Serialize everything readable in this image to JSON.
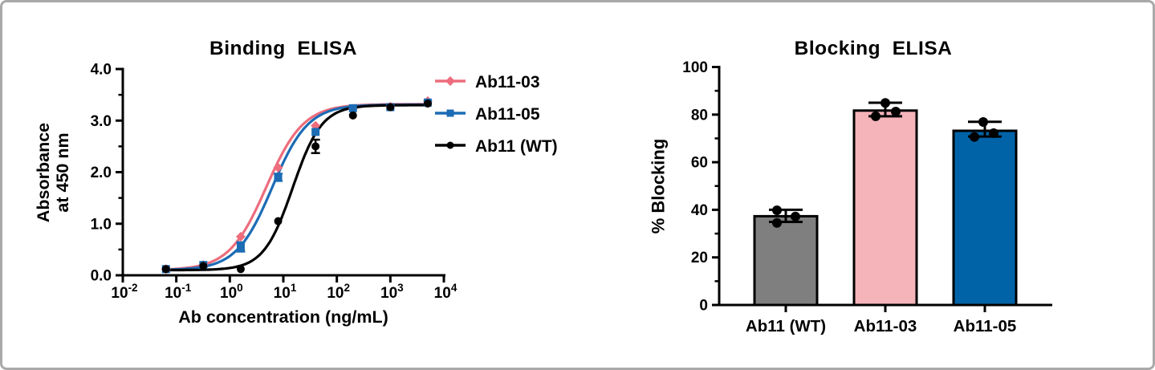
{
  "figure": {
    "background": "#ffffff",
    "border_color": "#a9a9a9"
  },
  "chart_data": [
    {
      "type": "line",
      "title": "Binding  ELISA",
      "xlabel": "Ab concentration (ng/mL)",
      "ylabel": "Absorbance at 450 nm",
      "ylabel_lines": [
        "Absorbance",
        "at 450 nm"
      ],
      "x_scale": "log10",
      "xlim_exponents": [
        -2,
        4
      ],
      "x_tick_exponents": [
        -2,
        -1,
        0,
        1,
        2,
        3,
        4
      ],
      "ylim": [
        0,
        4
      ],
      "y_ticks": [
        0,
        1,
        2,
        3,
        4
      ],
      "y_minor_step": 0.5,
      "grid": false,
      "legend_position": "right",
      "x": [
        0.064,
        0.32,
        1.6,
        8,
        40,
        200,
        1000,
        5000
      ],
      "series": [
        {
          "name": "Ab11-03",
          "color": "#ed6d7d",
          "marker": "diamond",
          "values": [
            0.12,
            0.2,
            0.75,
            2.09,
            2.9,
            3.23,
            3.27,
            3.38
          ],
          "errors": [
            0,
            0,
            0,
            0,
            0,
            0,
            0,
            0
          ],
          "curve_fit": {
            "model": "4PL",
            "bottom": 0.1,
            "top": 3.32,
            "ec50": 4.8,
            "hill": 1.25
          }
        },
        {
          "name": "Ab11-05",
          "color": "#1c6cb5",
          "marker": "square",
          "values": [
            0.12,
            0.2,
            0.55,
            1.9,
            2.78,
            3.24,
            3.26,
            3.35
          ],
          "errors": [
            0,
            0,
            0.09,
            0.07,
            0,
            0,
            0,
            0
          ],
          "curve_fit": {
            "model": "4PL",
            "bottom": 0.1,
            "top": 3.31,
            "ec50": 6.2,
            "hill": 1.3
          }
        },
        {
          "name": "Ab11 (WT)",
          "color": "#000000",
          "marker": "circle",
          "values": [
            0.12,
            0.18,
            0.12,
            1.05,
            2.5,
            3.1,
            3.26,
            3.33
          ],
          "errors": [
            0,
            0,
            0,
            0,
            0.13,
            0,
            0,
            0
          ],
          "curve_fit": {
            "model": "4PL",
            "bottom": 0.1,
            "top": 3.3,
            "ec50": 15,
            "hill": 1.6
          }
        }
      ]
    },
    {
      "type": "bar",
      "title": "Blocking  ELISA",
      "ylabel": "% Blocking",
      "ylim": [
        0,
        100
      ],
      "y_ticks": [
        0,
        20,
        40,
        60,
        80,
        100
      ],
      "y_minor_step": 10,
      "grid": false,
      "categories": [
        "Ab11 (WT)",
        "Ab11-03",
        "Ab11-05"
      ],
      "values": [
        37.3,
        81.7,
        73.2
      ],
      "bar_colors": [
        "#7f7f7f",
        "#f5b4ba",
        "#0063a8"
      ],
      "bar_edge_color": "#000000",
      "error_low": [
        34.9,
        79.3,
        70.8
      ],
      "error_high": [
        40.0,
        85.0,
        77.0
      ],
      "points": [
        [
          {
            "dx": -11,
            "y": 39.8
          },
          {
            "dx": 12,
            "y": 37.2
          },
          {
            "dx": -11,
            "y": 34.5
          }
        ],
        [
          {
            "dx": 0,
            "y": 84.9
          },
          {
            "dx": 13,
            "y": 81.3
          },
          {
            "dx": -12,
            "y": 79.3
          }
        ],
        [
          {
            "dx": -2,
            "y": 76.9
          },
          {
            "dx": 11,
            "y": 72.2
          },
          {
            "dx": -13,
            "y": 70.6
          }
        ]
      ]
    }
  ]
}
